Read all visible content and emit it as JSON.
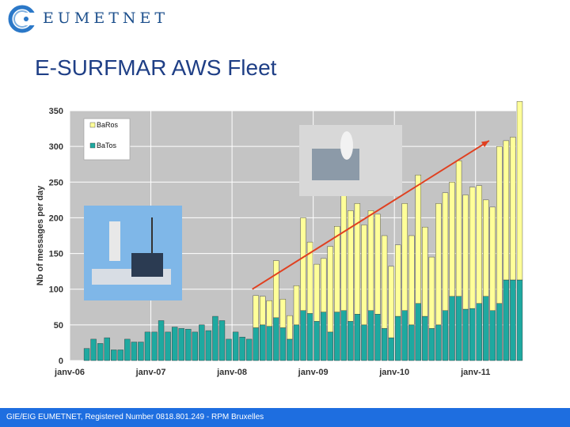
{
  "logo": {
    "text": "EUMETNET",
    "icon": "eumetnet-circle-logo"
  },
  "slide_title": "E-SURFMAR AWS Fleet",
  "footer": {
    "text": "GIE/EIG EUMETNET, Registered Number 0818.801.249 - RPM Bruxelles"
  },
  "colors": {
    "barcos": "#ffff99",
    "batos": "#1ea9a0",
    "plot_bg": "#c4c4c4",
    "trend": "#e04020",
    "footer": "#1e6ee0",
    "title": "#1f3f86"
  },
  "chart_data": {
    "type": "bar",
    "stacked": true,
    "ylabel": "Nb of messages per day",
    "xlabel": "",
    "ylim": [
      0,
      350
    ],
    "yticks": [
      0,
      50,
      100,
      150,
      200,
      250,
      300,
      350
    ],
    "xtick_labels": [
      "janv-06",
      "janv-07",
      "janv-08",
      "janv-09",
      "janv-10",
      "janv-11"
    ],
    "legend_position": "top-left",
    "grid": true,
    "months_start": "2006-01",
    "series": [
      {
        "name": "BaRos",
        "color": "#ffff99",
        "values": [
          0,
          0,
          0,
          0,
          0,
          0,
          0,
          0,
          0,
          0,
          0,
          0,
          0,
          0,
          0,
          0,
          0,
          0,
          0,
          0,
          0,
          0,
          0,
          0,
          0,
          0,
          0,
          45,
          40,
          36,
          80,
          40,
          33,
          55,
          130,
          100,
          80,
          75,
          120,
          120,
          165,
          155,
          155,
          140,
          140,
          140,
          130,
          100,
          100,
          150,
          125,
          180,
          125,
          100,
          170,
          165,
          160,
          190,
          160,
          170,
          165,
          135,
          145,
          220,
          195,
          200,
          250
        ]
      },
      {
        "name": "BaTos",
        "color": "#1ea9a0",
        "values": [
          0,
          0,
          17,
          30,
          24,
          32,
          15,
          15,
          30,
          26,
          26,
          40,
          40,
          56,
          40,
          47,
          45,
          44,
          40,
          50,
          42,
          62,
          56,
          30,
          40,
          33,
          30,
          46,
          50,
          48,
          60,
          46,
          30,
          50,
          70,
          66,
          55,
          68,
          40,
          68,
          70,
          55,
          65,
          50,
          70,
          65,
          45,
          32,
          62,
          70,
          50,
          80,
          62,
          45,
          50,
          70,
          90,
          90,
          72,
          73,
          80,
          90,
          70,
          80,
          113,
          113,
          113
        ]
      }
    ],
    "trend_line": {
      "from": {
        "x": "2008-04",
        "y": 100
      },
      "to": {
        "x": "2011-02",
        "y": 308
      }
    }
  }
}
